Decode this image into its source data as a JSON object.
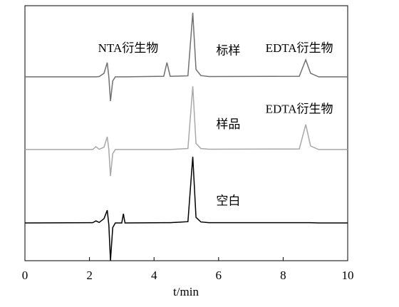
{
  "chart_data": {
    "type": "line",
    "xlabel": "t/min",
    "x": [
      0,
      2.1,
      2.2,
      2.3,
      2.45,
      2.55,
      2.6,
      2.65,
      2.72,
      2.8,
      3.0,
      3.05,
      3.1,
      4.3,
      4.4,
      4.5,
      5.05,
      5.2,
      5.3,
      5.45,
      5.7,
      8.5,
      8.7,
      8.85,
      9.1,
      10
    ],
    "series": [
      {
        "name": "标样",
        "color": "#707070",
        "values": [
          72.1,
          72.1,
          72.1,
          72.2,
          73.5,
          77.7,
          72,
          62.6,
          70.5,
          72.1,
          72.1,
          72.1,
          72.1,
          72.3,
          77.7,
          72.3,
          72.5,
          97.2,
          75,
          72.6,
          72.2,
          72.3,
          78.8,
          73.5,
          72.1,
          72.1
        ]
      },
      {
        "name": "样品",
        "color": "#a8a8a8",
        "values": [
          43.6,
          43.6,
          44.7,
          43.7,
          44.5,
          48.6,
          43.5,
          33.2,
          42,
          43.6,
          43.6,
          43.6,
          43.6,
          43.6,
          43.6,
          43.6,
          44,
          68.4,
          46,
          44,
          43.7,
          43.8,
          53.4,
          45,
          43.6,
          43.6
        ]
      },
      {
        "name": "空白",
        "color": "#000000",
        "values": [
          14.8,
          14.9,
          15.6,
          15,
          16.5,
          19.8,
          14,
          0,
          13,
          14.8,
          14.8,
          18.4,
          14.8,
          14.9,
          14.9,
          14.9,
          15.3,
          40.8,
          17,
          15.2,
          14.9,
          14.9,
          14.9,
          14.9,
          14.8,
          14.8
        ]
      }
    ],
    "annotations": [
      {
        "text": "NTA衍生物",
        "x": 3.2,
        "y": 83
      },
      {
        "text": "EDTA衍生物",
        "x": 8.5,
        "y": 83
      },
      {
        "text": "EDTA衍生物",
        "x": 8.5,
        "y": 59
      }
    ],
    "series_label_x": 6.3,
    "series_label_y": [
      82,
      53,
      23
    ],
    "xlim": [
      0,
      10
    ],
    "ylim": [
      0,
      100
    ],
    "xticks": [
      0,
      2,
      4,
      6,
      8,
      10
    ]
  }
}
